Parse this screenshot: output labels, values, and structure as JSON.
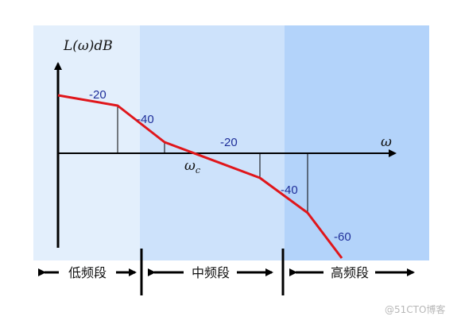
{
  "axes": {
    "y_label": "L(ω)dB",
    "x_label": "ω",
    "crossover_label": "ω",
    "crossover_subscript": "c"
  },
  "slopes": [
    "-20",
    "-40",
    "-20",
    "-40",
    "-60"
  ],
  "bands": {
    "low": "低频段",
    "mid": "中频段",
    "high": "高频段"
  },
  "colors": {
    "low_band": "#e3effc",
    "mid_band": "#cde2fb",
    "high_band": "#b3d3fa",
    "curve": "#e0161b",
    "slope_text": "#1f2f9a"
  },
  "watermark": "@51CTO博客"
}
